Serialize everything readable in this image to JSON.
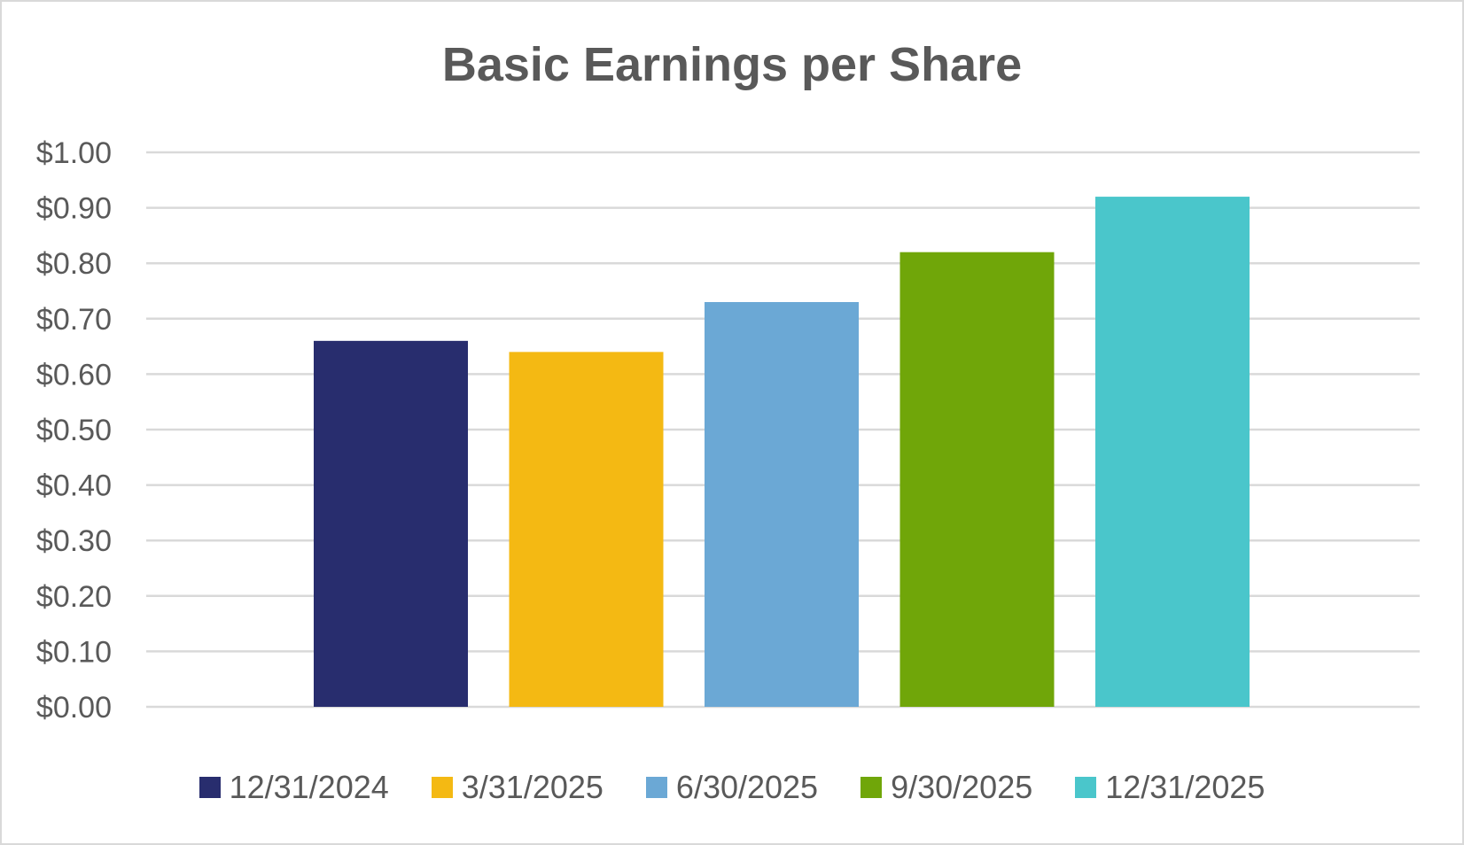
{
  "chart_data": {
    "type": "bar",
    "title": "Basic Earnings per Share",
    "xlabel": "",
    "ylabel": "",
    "ylim": [
      0,
      1.0
    ],
    "yticks": [
      "$0.00",
      "$0.10",
      "$0.20",
      "$0.30",
      "$0.40",
      "$0.50",
      "$0.60",
      "$0.70",
      "$0.80",
      "$0.90",
      "$1.00"
    ],
    "grid": true,
    "legend_position": "bottom",
    "series": [
      {
        "name": "12/31/2024",
        "value": 0.66,
        "color": "#282D6E"
      },
      {
        "name": "3/31/2025",
        "value": 0.64,
        "color": "#F4B913"
      },
      {
        "name": "6/30/2025",
        "value": 0.73,
        "color": "#6BA8D5"
      },
      {
        "name": "9/30/2025",
        "value": 0.82,
        "color": "#70A609"
      },
      {
        "name": "12/31/2025",
        "value": 0.92,
        "color": "#4AC6CB"
      }
    ]
  }
}
